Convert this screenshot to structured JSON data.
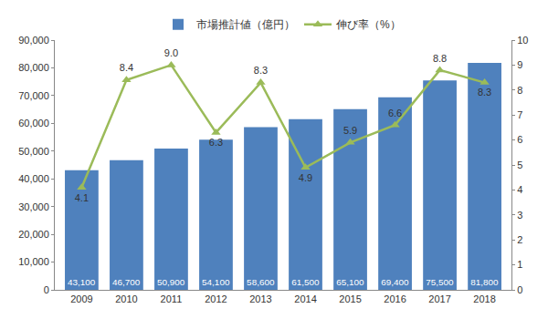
{
  "chart_data": {
    "type": "bar",
    "categories": [
      "2009",
      "2010",
      "2011",
      "2012",
      "2013",
      "2014",
      "2015",
      "2016",
      "2017",
      "2018"
    ],
    "series": [
      {
        "name": "市場推計値（億円）",
        "type": "bar",
        "color": "#4f81bd",
        "values": [
          43100,
          46700,
          50900,
          54100,
          58600,
          61500,
          65100,
          69400,
          75500,
          81800
        ],
        "value_labels": [
          "43,100",
          "46,700",
          "50,900",
          "54,100",
          "58,600",
          "61,500",
          "65,100",
          "69,400",
          "75,500",
          "81,800"
        ]
      },
      {
        "name": "伸び率（%）",
        "type": "line",
        "axis": "y2",
        "color": "#9bbb59",
        "marker": "triangle-up",
        "values": [
          4.1,
          8.4,
          9.0,
          6.3,
          8.3,
          4.9,
          5.9,
          6.6,
          8.8,
          8.3
        ],
        "value_labels": [
          "4.1",
          "8.4",
          "9.0",
          "6.3",
          "8.3",
          "4.9",
          "5.9",
          "6.6",
          "8.8",
          "8.3"
        ]
      }
    ],
    "ylim": [
      0,
      90000
    ],
    "yticks": [
      0,
      {
        "value": 10000,
        "label": "10,000"
      },
      {
        "value": 20000,
        "label": "20,000"
      },
      {
        "value": 30000,
        "label": "30,000"
      },
      {
        "value": 40000,
        "label": "40,000"
      },
      {
        "value": 50000,
        "label": "50,000"
      },
      {
        "value": 60000,
        "label": "60,000"
      },
      {
        "value": 70000,
        "label": "70,000"
      },
      {
        "value": 80000,
        "label": "80,000"
      },
      {
        "value": 90000,
        "label": "90,000"
      }
    ],
    "y2lim": [
      0,
      10
    ],
    "y2ticks": [
      0,
      1,
      2,
      3,
      4,
      5,
      6,
      7,
      8,
      9,
      10
    ],
    "data_labels": true,
    "legend": "top",
    "grid": false
  }
}
